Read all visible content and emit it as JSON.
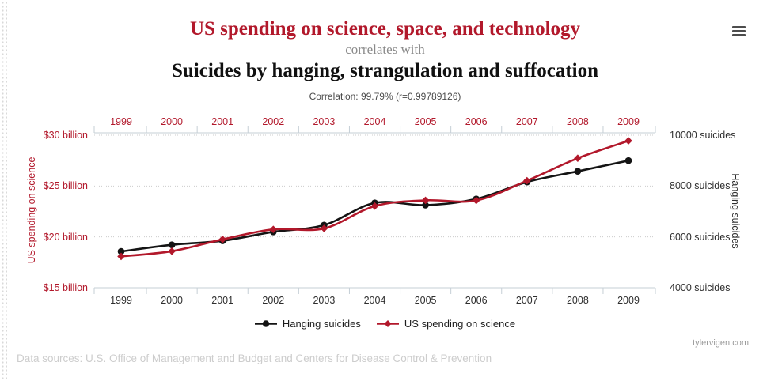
{
  "header": {
    "title_top": "US spending on science, space, and technology",
    "connector": "correlates with",
    "title_bottom": "Suicides by hanging, strangulation and suffocation",
    "correlation_text": "Correlation: 99.79% (r=0.99789126)"
  },
  "footer": {
    "watermark": "tylervigen.com",
    "note": "Data sources: U.S. Office of Management and Budget and Centers for Disease Control & Prevention"
  },
  "colors": {
    "accent_red": "#b2182b",
    "series_black": "#141414",
    "axis_line": "#c6cfd6",
    "gridline": "#cccccc",
    "bottom_year_labels": "#2e2e2e",
    "connector_gray": "#8a8a8a",
    "faint_footer_gray": "#cdcdcd",
    "menu_icon_gray": "#4d4d4d"
  },
  "chart_data": {
    "type": "line",
    "title": "US spending on science, space, and technology correlates with Suicides by hanging, strangulation and suffocation",
    "correlation": "99.79%",
    "r_value": 0.99789126,
    "x": [
      1999,
      2000,
      2001,
      2002,
      2003,
      2004,
      2005,
      2006,
      2007,
      2008,
      2009
    ],
    "series": [
      {
        "name": "Hanging suicides",
        "axis": "right",
        "color": "#141414",
        "marker": "circle",
        "values": [
          5427,
          5688,
          5848,
          6198,
          6462,
          7336,
          7248,
          7491,
          8161,
          8578,
          9000
        ]
      },
      {
        "name": "US spending on science",
        "axis": "left",
        "color": "#b2182b",
        "marker": "diamond",
        "values": [
          18.079,
          18.594,
          19.753,
          20.734,
          20.831,
          23.029,
          23.597,
          23.584,
          25.525,
          27.731,
          29.449
        ]
      }
    ],
    "left_axis": {
      "label": "US spending on science",
      "unit": "billion USD",
      "min": 15,
      "max": 30,
      "tick_values": [
        15,
        20,
        25,
        30
      ],
      "tick_labels": [
        "$15 billion",
        "$20 billion",
        "$25 billion",
        "$30 billion"
      ]
    },
    "right_axis": {
      "label": "Hanging suicides",
      "unit": "suicides",
      "min": 4000,
      "max": 10000,
      "tick_values": [
        4000,
        6000,
        8000,
        10000
      ],
      "tick_labels": [
        "4000 suicides",
        "6000 suicides",
        "8000 suicides",
        "10000 suicides"
      ]
    },
    "grid": true,
    "legend_position": "bottom"
  }
}
